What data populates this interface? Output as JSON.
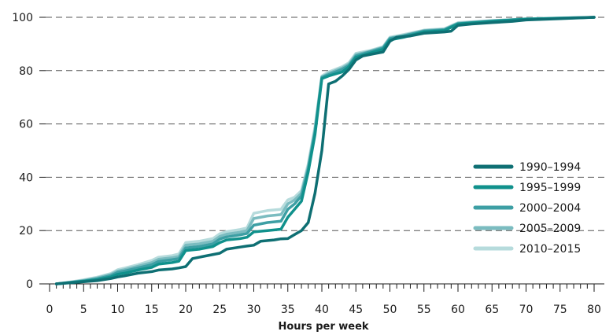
{
  "chart_data": {
    "type": "line",
    "title": "",
    "xlabel": "Hours per week",
    "ylabel": "",
    "xlim": [
      0,
      80
    ],
    "ylim": [
      0,
      100
    ],
    "x_ticks": [
      "0",
      "5",
      "10",
      "15",
      "20",
      "25",
      "30",
      "35",
      "40",
      "45",
      "50",
      "55",
      "60",
      "65",
      "70",
      "75",
      "80"
    ],
    "y_ticks": [
      "0",
      "20",
      "40",
      "60",
      "80",
      "100"
    ],
    "grid": "horizontal dashed",
    "legend_position": "right",
    "series": [
      {
        "name": "1990–1994",
        "color": "#0e6f73",
        "points": [
          [
            1,
            0
          ],
          [
            3,
            0.4
          ],
          [
            5,
            0.8
          ],
          [
            7,
            1.2
          ],
          [
            9,
            2
          ],
          [
            10,
            2.6
          ],
          [
            11,
            3
          ],
          [
            13,
            4
          ],
          [
            15,
            4.6
          ],
          [
            16,
            5.2
          ],
          [
            18,
            5.6
          ],
          [
            19,
            6
          ],
          [
            20,
            6.5
          ],
          [
            21,
            9.5
          ],
          [
            23,
            10.5
          ],
          [
            25,
            11.5
          ],
          [
            26,
            13
          ],
          [
            28,
            13.8
          ],
          [
            29,
            14.2
          ],
          [
            30,
            14.5
          ],
          [
            31,
            16
          ],
          [
            33,
            16.5
          ],
          [
            34,
            16.9
          ],
          [
            35,
            17
          ],
          [
            36,
            18.5
          ],
          [
            37,
            20
          ],
          [
            38,
            23
          ],
          [
            39,
            34
          ],
          [
            40,
            50
          ],
          [
            41,
            75
          ],
          [
            42,
            76
          ],
          [
            43,
            78
          ],
          [
            44,
            80.5
          ],
          [
            45,
            84
          ],
          [
            46,
            85.5
          ],
          [
            48,
            86.5
          ],
          [
            49,
            87
          ],
          [
            50,
            91
          ],
          [
            51,
            92.5
          ],
          [
            53,
            93
          ],
          [
            55,
            94
          ],
          [
            58,
            94.5
          ],
          [
            59,
            94.8
          ],
          [
            60,
            97
          ],
          [
            62,
            97.5
          ],
          [
            65,
            98
          ],
          [
            68,
            98.5
          ],
          [
            70,
            99
          ],
          [
            75,
            99.5
          ],
          [
            80,
            100
          ]
        ]
      },
      {
        "name": "1995–1999",
        "color": "#10918c",
        "points": [
          [
            1,
            0
          ],
          [
            3,
            0.5
          ],
          [
            5,
            1
          ],
          [
            7,
            1.6
          ],
          [
            9,
            2.6
          ],
          [
            10,
            3.6
          ],
          [
            11,
            4
          ],
          [
            13,
            5.2
          ],
          [
            15,
            6.2
          ],
          [
            16,
            7.4
          ],
          [
            18,
            8
          ],
          [
            19,
            8.5
          ],
          [
            20,
            12.5
          ],
          [
            22,
            13
          ],
          [
            24,
            14
          ],
          [
            25,
            15.5
          ],
          [
            26,
            16.5
          ],
          [
            28,
            17
          ],
          [
            29,
            17.5
          ],
          [
            30,
            19.5
          ],
          [
            32,
            20
          ],
          [
            34,
            20.5
          ],
          [
            35,
            25
          ],
          [
            36,
            28
          ],
          [
            37,
            31
          ],
          [
            38,
            42
          ],
          [
            39,
            56
          ],
          [
            40,
            77
          ],
          [
            41,
            78
          ],
          [
            43,
            79.5
          ],
          [
            44,
            81.5
          ],
          [
            45,
            85
          ],
          [
            47,
            86.5
          ],
          [
            49,
            88
          ],
          [
            50,
            91.5
          ],
          [
            52,
            92.5
          ],
          [
            55,
            94.5
          ],
          [
            58,
            95
          ],
          [
            60,
            97.5
          ],
          [
            65,
            98.5
          ],
          [
            70,
            99.3
          ],
          [
            75,
            99.6
          ],
          [
            80,
            100
          ]
        ]
      },
      {
        "name": "2000–2004",
        "color": "#3d9fa4",
        "points": [
          [
            1,
            0
          ],
          [
            3,
            0.5
          ],
          [
            5,
            1.1
          ],
          [
            7,
            1.9
          ],
          [
            9,
            3.1
          ],
          [
            10,
            4.3
          ],
          [
            11,
            4.8
          ],
          [
            13,
            6
          ],
          [
            15,
            7.2
          ],
          [
            16,
            8.4
          ],
          [
            18,
            9.1
          ],
          [
            19,
            9.5
          ],
          [
            20,
            13.5
          ],
          [
            22,
            14
          ],
          [
            24,
            15
          ],
          [
            25,
            16.8
          ],
          [
            26,
            17.6
          ],
          [
            28,
            18.4
          ],
          [
            29,
            18.9
          ],
          [
            30,
            22
          ],
          [
            32,
            23
          ],
          [
            34,
            23.5
          ],
          [
            35,
            28
          ],
          [
            36,
            30
          ],
          [
            37,
            33
          ],
          [
            38,
            43
          ],
          [
            39,
            57
          ],
          [
            40,
            77.5
          ],
          [
            41,
            78.5
          ],
          [
            43,
            80.5
          ],
          [
            44,
            82
          ],
          [
            45,
            85.5
          ],
          [
            47,
            87
          ],
          [
            49,
            88.5
          ],
          [
            50,
            92
          ],
          [
            52,
            93
          ],
          [
            55,
            94.8
          ],
          [
            58,
            95.3
          ],
          [
            60,
            97.6
          ],
          [
            65,
            98.6
          ],
          [
            70,
            99.3
          ],
          [
            75,
            99.7
          ],
          [
            80,
            100
          ]
        ]
      },
      {
        "name": "2005–2009",
        "color": "#7bbcc0",
        "points": [
          [
            1,
            0
          ],
          [
            3,
            0.6
          ],
          [
            5,
            1.3
          ],
          [
            7,
            2.2
          ],
          [
            9,
            3.5
          ],
          [
            10,
            4.8
          ],
          [
            11,
            5.3
          ],
          [
            13,
            6.6
          ],
          [
            15,
            8
          ],
          [
            16,
            9.2
          ],
          [
            18,
            9.8
          ],
          [
            19,
            10.3
          ],
          [
            20,
            14.5
          ],
          [
            22,
            15
          ],
          [
            24,
            16
          ],
          [
            25,
            17.8
          ],
          [
            26,
            18.6
          ],
          [
            28,
            19.4
          ],
          [
            29,
            20
          ],
          [
            30,
            24.5
          ],
          [
            32,
            25.5
          ],
          [
            34,
            26
          ],
          [
            35,
            30
          ],
          [
            36,
            31.5
          ],
          [
            37,
            34
          ],
          [
            38,
            44
          ],
          [
            39,
            58
          ],
          [
            40,
            77.5
          ],
          [
            41,
            79
          ],
          [
            43,
            81
          ],
          [
            44,
            82.5
          ],
          [
            45,
            86
          ],
          [
            47,
            87.2
          ],
          [
            49,
            88.8
          ],
          [
            50,
            92.2
          ],
          [
            52,
            93.2
          ],
          [
            55,
            95
          ],
          [
            58,
            95.5
          ],
          [
            60,
            97.8
          ],
          [
            65,
            98.7
          ],
          [
            70,
            99.4
          ],
          [
            75,
            99.7
          ],
          [
            80,
            100
          ]
        ]
      },
      {
        "name": "2010–2015",
        "color": "#b6dbdc",
        "points": [
          [
            1,
            0
          ],
          [
            3,
            0.7
          ],
          [
            5,
            1.5
          ],
          [
            7,
            2.5
          ],
          [
            9,
            3.9
          ],
          [
            10,
            5.3
          ],
          [
            11,
            5.9
          ],
          [
            13,
            7.2
          ],
          [
            15,
            8.8
          ],
          [
            16,
            10
          ],
          [
            18,
            10.6
          ],
          [
            19,
            11.2
          ],
          [
            20,
            15.5
          ],
          [
            22,
            16
          ],
          [
            24,
            17
          ],
          [
            25,
            18.8
          ],
          [
            26,
            19.6
          ],
          [
            28,
            20.4
          ],
          [
            29,
            21
          ],
          [
            30,
            26.5
          ],
          [
            32,
            27.5
          ],
          [
            34,
            28
          ],
          [
            35,
            31.5
          ],
          [
            36,
            32.5
          ],
          [
            37,
            35
          ],
          [
            38,
            45
          ],
          [
            39,
            59
          ],
          [
            40,
            78
          ],
          [
            41,
            79.5
          ],
          [
            43,
            81.5
          ],
          [
            44,
            83
          ],
          [
            45,
            86.5
          ],
          [
            47,
            87.5
          ],
          [
            49,
            89
          ],
          [
            50,
            92.5
          ],
          [
            52,
            93.5
          ],
          [
            55,
            95.2
          ],
          [
            58,
            95.7
          ],
          [
            60,
            98
          ],
          [
            65,
            98.8
          ],
          [
            70,
            99.4
          ],
          [
            75,
            99.8
          ],
          [
            80,
            100
          ]
        ]
      }
    ]
  }
}
